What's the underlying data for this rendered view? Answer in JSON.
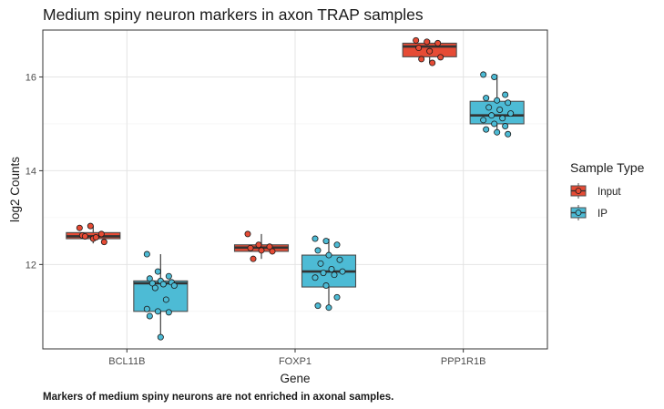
{
  "chart_data": {
    "type": "boxplot",
    "title": "Medium spiny neuron markers in axon TRAP samples",
    "caption": "Markers of medium spiny neurons are not enriched in axonal samples.",
    "xlabel": "Gene",
    "ylabel": "log2 Counts",
    "categories": [
      "BCL11B",
      "FOXP1",
      "PPP1R1B"
    ],
    "ylim": [
      10.2,
      17.0
    ],
    "yticks": [
      12,
      14,
      16
    ],
    "grid": true,
    "legend": {
      "title": "Sample Type",
      "position": "right",
      "entries": [
        "Input",
        "IP"
      ]
    },
    "series": [
      {
        "name": "Input",
        "color": "#E64B35",
        "boxes": [
          {
            "category": "BCL11B",
            "q1": 12.55,
            "median": 12.6,
            "q3": 12.68,
            "min": 12.45,
            "max": 12.82
          },
          {
            "category": "FOXP1",
            "q1": 12.28,
            "median": 12.36,
            "q3": 12.42,
            "min": 12.12,
            "max": 12.65
          },
          {
            "category": "PPP1R1B",
            "q1": 16.43,
            "median": 16.65,
            "q3": 16.72,
            "min": 16.3,
            "max": 16.78
          }
        ],
        "points": [
          {
            "category": "BCL11B",
            "values": [
              12.78,
              12.82,
              12.65,
              12.62,
              12.55,
              12.48,
              12.6,
              12.58
            ]
          },
          {
            "category": "FOXP1",
            "values": [
              12.65,
              12.42,
              12.38,
              12.35,
              12.3,
              12.28,
              12.12
            ]
          },
          {
            "category": "PPP1R1B",
            "values": [
              16.78,
              16.75,
              16.72,
              16.62,
              16.55,
              16.42,
              16.38,
              16.3
            ]
          }
        ]
      },
      {
        "name": "IP",
        "color": "#4DBBD5",
        "boxes": [
          {
            "category": "BCL11B",
            "q1": 11.0,
            "median": 11.6,
            "q3": 11.65,
            "min": 10.45,
            "max": 12.22
          },
          {
            "category": "FOXP1",
            "q1": 11.52,
            "median": 11.85,
            "q3": 12.2,
            "min": 11.05,
            "max": 12.55
          },
          {
            "category": "PPP1R1B",
            "q1": 15.0,
            "median": 15.18,
            "q3": 15.48,
            "min": 14.78,
            "max": 16.05
          }
        ],
        "points": [
          {
            "category": "BCL11B",
            "values": [
              12.22,
              11.85,
              11.75,
              11.7,
              11.65,
              11.62,
              11.6,
              11.58,
              11.55,
              11.5,
              11.25,
              11.05,
              11.0,
              10.98,
              10.9,
              10.45
            ]
          },
          {
            "category": "FOXP1",
            "values": [
              12.55,
              12.5,
              12.42,
              12.3,
              12.2,
              12.1,
              12.02,
              11.9,
              11.85,
              11.82,
              11.78,
              11.72,
              11.55,
              11.3,
              11.12,
              11.08
            ]
          },
          {
            "category": "PPP1R1B",
            "values": [
              16.05,
              16.0,
              15.62,
              15.55,
              15.5,
              15.45,
              15.35,
              15.3,
              15.22,
              15.18,
              15.12,
              15.08,
              15.0,
              14.95,
              14.88,
              14.82,
              14.78
            ]
          }
        ]
      }
    ]
  }
}
